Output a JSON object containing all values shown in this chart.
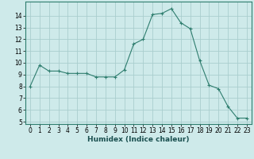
{
  "x": [
    0,
    1,
    2,
    3,
    4,
    5,
    6,
    7,
    8,
    9,
    10,
    11,
    12,
    13,
    14,
    15,
    16,
    17,
    18,
    19,
    20,
    21,
    22,
    23
  ],
  "y": [
    8.0,
    9.8,
    9.3,
    9.3,
    9.1,
    9.1,
    9.1,
    8.8,
    8.8,
    8.8,
    9.4,
    11.6,
    12.0,
    14.1,
    14.2,
    14.6,
    13.4,
    12.9,
    10.2,
    8.1,
    7.8,
    6.3,
    5.3,
    5.3
  ],
  "xlabel": "Humidex (Indice chaleur)",
  "xlim": [
    -0.5,
    23.5
  ],
  "ylim": [
    4.8,
    15.2
  ],
  "yticks": [
    5,
    6,
    7,
    8,
    9,
    10,
    11,
    12,
    13,
    14
  ],
  "xticks": [
    0,
    1,
    2,
    3,
    4,
    5,
    6,
    7,
    8,
    9,
    10,
    11,
    12,
    13,
    14,
    15,
    16,
    17,
    18,
    19,
    20,
    21,
    22,
    23
  ],
  "line_color": "#2e7d6e",
  "marker": "+",
  "bg_color": "#ceeaea",
  "grid_color": "#aacece",
  "label_fontsize": 6.5,
  "tick_fontsize": 5.5,
  "line_width": 0.8,
  "marker_size": 3,
  "marker_edge_width": 0.8
}
